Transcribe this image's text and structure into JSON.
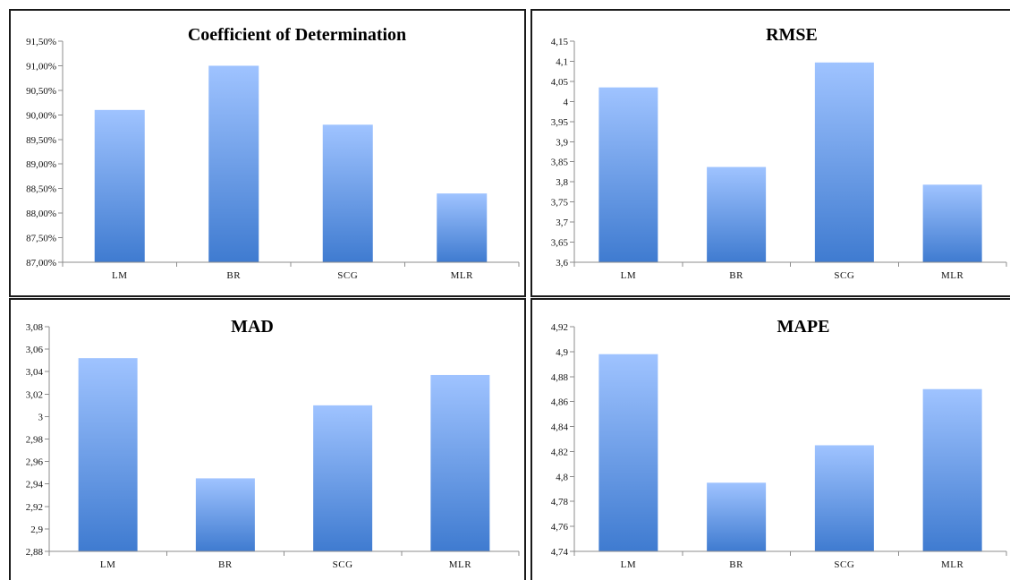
{
  "chart_data": [
    {
      "type": "bar",
      "title": "Coefficient of Determination",
      "categories": [
        "LM",
        "BR",
        "SCG",
        "MLR"
      ],
      "values": [
        0.901,
        0.91,
        0.898,
        0.884
      ],
      "ylim": [
        0.87,
        0.915
      ],
      "yticks": [
        "87,00%",
        "87,50%",
        "88,00%",
        "88,50%",
        "89,00%",
        "89,50%",
        "90,00%",
        "90,50%",
        "91,00%",
        "91,50%"
      ],
      "grid": false,
      "legend": "none",
      "colors": {
        "bar_top": "#9fc3ff",
        "bar_bottom": "#3f7bd0"
      }
    },
    {
      "type": "bar",
      "title": "RMSE",
      "categories": [
        "LM",
        "BR",
        "SCG",
        "MLR"
      ],
      "values": [
        4.035,
        3.837,
        4.097,
        3.793
      ],
      "ylim": [
        3.6,
        4.15
      ],
      "yticks": [
        "3,6",
        "3,65",
        "3,7",
        "3,75",
        "3,8",
        "3,85",
        "3,9",
        "3,95",
        "4",
        "4,05",
        "4,1",
        "4,15"
      ],
      "grid": false,
      "legend": "none",
      "colors": {
        "bar_top": "#9fc3ff",
        "bar_bottom": "#3f7bd0"
      }
    },
    {
      "type": "bar",
      "title": "MAD",
      "categories": [
        "LM",
        "BR",
        "SCG",
        "MLR"
      ],
      "values": [
        3.052,
        2.945,
        3.01,
        3.037
      ],
      "ylim": [
        2.88,
        3.08
      ],
      "yticks": [
        "2,88",
        "2,9",
        "2,92",
        "2,94",
        "2,96",
        "2,98",
        "3",
        "3,02",
        "3,04",
        "3,06",
        "3,08"
      ],
      "grid": false,
      "legend": "none",
      "colors": {
        "bar_top": "#9fc3ff",
        "bar_bottom": "#3f7bd0"
      }
    },
    {
      "type": "bar",
      "title": "MAPE",
      "categories": [
        "LM",
        "BR",
        "SCG",
        "MLR"
      ],
      "values": [
        4.898,
        4.795,
        4.825,
        4.87
      ],
      "ylim": [
        4.74,
        4.92
      ],
      "yticks": [
        "4,74",
        "4,76",
        "4,78",
        "4,8",
        "4,82",
        "4,84",
        "4,86",
        "4,88",
        "4,9",
        "4,92"
      ],
      "grid": false,
      "legend": "none",
      "colors": {
        "bar_top": "#9fc3ff",
        "bar_bottom": "#3f7bd0"
      }
    }
  ]
}
